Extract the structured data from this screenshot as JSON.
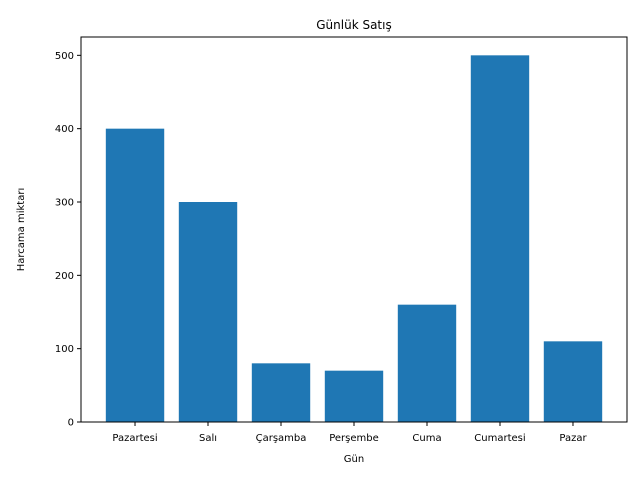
{
  "chart_data": {
    "type": "bar",
    "title": "Günlük Satış",
    "xlabel": "Gün",
    "ylabel": "Harcama miktarı",
    "categories": [
      "Pazartesi",
      "Salı",
      "Çarşamba",
      "Perşembe",
      "Cuma",
      "Cumartesi",
      "Pazar"
    ],
    "values": [
      400,
      300,
      80,
      70,
      160,
      500,
      110
    ],
    "ylim": [
      0,
      525
    ],
    "yticks": [
      0,
      100,
      200,
      300,
      400,
      500
    ],
    "grid": false,
    "legend": "none",
    "bar_color": "#1f77b4"
  }
}
